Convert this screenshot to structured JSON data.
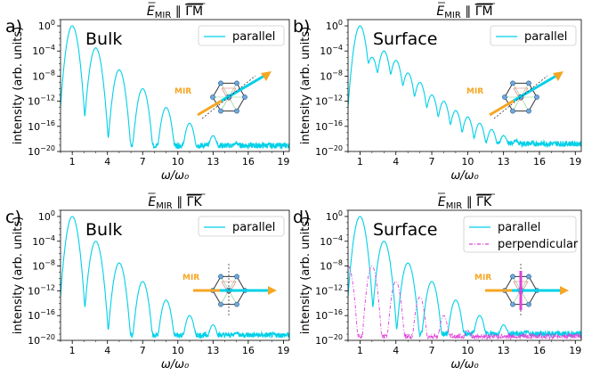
{
  "colors": {
    "parallel": "#00d0e8",
    "perpendicular": "#e040d8",
    "mir_arrow": "#f5a623",
    "axis": "#000000"
  },
  "chart_data": [
    {
      "type": "line",
      "label": "a)",
      "region": "Bulk",
      "title": "E_MIR ∥ ΓM",
      "title_parts": {
        "field": "E",
        "subscript": "MIR",
        "parallel": "∥",
        "direction": "ΓM"
      },
      "xlabel": "ω/ω₀",
      "ylabel": "intensity (arb. units)",
      "xlim": [
        0,
        19.5
      ],
      "ylim_log10": [
        -20,
        1
      ],
      "x_ticks": [
        "1",
        "4",
        "7",
        "10",
        "13",
        "16",
        "19"
      ],
      "y_ticks": [
        "10^0",
        "10^-4",
        "10^-8",
        "10^-12",
        "10^-16",
        "10^-20"
      ],
      "y_tick_parts": [
        [
          "10",
          "0"
        ],
        [
          "10",
          "−4"
        ],
        [
          "10",
          "−8"
        ],
        [
          "10",
          "−12"
        ],
        [
          "10",
          "−16"
        ],
        [
          "10",
          "−20"
        ]
      ],
      "mir_label": "MIR",
      "legend": [
        "parallel"
      ],
      "series": [
        {
          "name": "parallel",
          "style": "solid",
          "peaks": [
            {
              "x": 1,
              "log10": 0
            },
            {
              "x": 3,
              "log10": -3.5
            },
            {
              "x": 5,
              "log10": -7
            },
            {
              "x": 7,
              "log10": -10
            },
            {
              "x": 9,
              "log10": -13
            },
            {
              "x": 11,
              "log10": -15.5
            },
            {
              "x": 13,
              "log10": -17.5
            },
            {
              "x": 15,
              "log10": -19
            }
          ],
          "baseline_log10": -19.5
        }
      ]
    },
    {
      "type": "line",
      "label": "b)",
      "region": "Surface",
      "title": "E_MIR ∥ ΓM",
      "title_parts": {
        "field": "E",
        "subscript": "MIR",
        "parallel": "∥",
        "direction": "ΓM"
      },
      "xlabel": "ω/ω₀",
      "ylabel": "intensity (arb. units)",
      "xlim": [
        0,
        19.5
      ],
      "ylim_log10": [
        -20,
        1
      ],
      "x_ticks": [
        "1",
        "4",
        "7",
        "10",
        "13",
        "16",
        "19"
      ],
      "y_ticks": [
        "10^0",
        "10^-4",
        "10^-8",
        "10^-12",
        "10^-16",
        "10^-20"
      ],
      "y_tick_parts": [
        [
          "10",
          "0"
        ],
        [
          "10",
          "−4"
        ],
        [
          "10",
          "−8"
        ],
        [
          "10",
          "−12"
        ],
        [
          "10",
          "−16"
        ],
        [
          "10",
          "−20"
        ]
      ],
      "mir_label": "MIR",
      "legend": [
        "parallel"
      ],
      "series": [
        {
          "name": "parallel",
          "style": "solid",
          "peaks": [
            {
              "x": 1,
              "log10": 0
            },
            {
              "x": 2,
              "log10": -5
            },
            {
              "x": 3,
              "log10": -4
            },
            {
              "x": 4,
              "log10": -5.5
            },
            {
              "x": 5,
              "log10": -7.5
            },
            {
              "x": 6,
              "log10": -9
            },
            {
              "x": 7,
              "log10": -11
            },
            {
              "x": 8,
              "log10": -12
            },
            {
              "x": 9,
              "log10": -13.5
            },
            {
              "x": 10,
              "log10": -14.5
            },
            {
              "x": 11,
              "log10": -15.5
            },
            {
              "x": 12,
              "log10": -16.5
            },
            {
              "x": 13,
              "log10": -17.5
            },
            {
              "x": 14,
              "log10": -18.5
            }
          ],
          "baseline_log10": -19.2
        }
      ]
    },
    {
      "type": "line",
      "label": "c)",
      "region": "Bulk",
      "title": "E_MIR ∥ ΓK",
      "title_parts": {
        "field": "E",
        "subscript": "MIR",
        "parallel": "∥",
        "direction": "ΓK"
      },
      "xlabel": "ω/ω₀",
      "ylabel": "intensity (arb. units)",
      "xlim": [
        0,
        19.5
      ],
      "ylim_log10": [
        -20,
        1
      ],
      "x_ticks": [
        "1",
        "4",
        "7",
        "10",
        "13",
        "16",
        "19"
      ],
      "y_ticks": [
        "10^0",
        "10^-4",
        "10^-8",
        "10^-12",
        "10^-16",
        "10^-20"
      ],
      "y_tick_parts": [
        [
          "10",
          "0"
        ],
        [
          "10",
          "−4"
        ],
        [
          "10",
          "−8"
        ],
        [
          "10",
          "−12"
        ],
        [
          "10",
          "−16"
        ],
        [
          "10",
          "−20"
        ]
      ],
      "mir_label": "MIR",
      "legend": [
        "parallel"
      ],
      "series": [
        {
          "name": "parallel",
          "style": "solid",
          "peaks": [
            {
              "x": 1,
              "log10": 0
            },
            {
              "x": 3,
              "log10": -4
            },
            {
              "x": 5,
              "log10": -7.5
            },
            {
              "x": 7,
              "log10": -10.5
            },
            {
              "x": 9,
              "log10": -13.5
            },
            {
              "x": 11,
              "log10": -16
            },
            {
              "x": 13,
              "log10": -17.5
            },
            {
              "x": 15,
              "log10": -19
            }
          ],
          "baseline_log10": -19.6
        }
      ]
    },
    {
      "type": "line",
      "label": "d)",
      "region": "Surface",
      "title": "E_MIR ∥ ΓK",
      "title_parts": {
        "field": "E",
        "subscript": "MIR",
        "parallel": "∥",
        "direction": "ΓK"
      },
      "xlabel": "ω/ω₀",
      "ylabel": "intensity (arb. units)",
      "xlim": [
        0,
        19.5
      ],
      "ylim_log10": [
        -20,
        1
      ],
      "x_ticks": [
        "1",
        "4",
        "7",
        "10",
        "13",
        "16",
        "19"
      ],
      "y_ticks": [
        "10^0",
        "10^-4",
        "10^-8",
        "10^-12",
        "10^-16",
        "10^-20"
      ],
      "y_tick_parts": [
        [
          "10",
          "0"
        ],
        [
          "10",
          "−4"
        ],
        [
          "10",
          "−8"
        ],
        [
          "10",
          "−12"
        ],
        [
          "10",
          "−16"
        ],
        [
          "10",
          "−20"
        ]
      ],
      "mir_label": "MIR",
      "legend": [
        "parallel",
        "perpendicular"
      ],
      "series": [
        {
          "name": "parallel",
          "style": "solid",
          "peaks": [
            {
              "x": 1,
              "log10": 0
            },
            {
              "x": 3,
              "log10": -4
            },
            {
              "x": 5,
              "log10": -7.5
            },
            {
              "x": 7,
              "log10": -10.5
            },
            {
              "x": 9,
              "log10": -13.5
            },
            {
              "x": 11,
              "log10": -16
            },
            {
              "x": 13,
              "log10": -17.5
            },
            {
              "x": 15,
              "log10": -19
            }
          ],
          "baseline_log10": -19.4
        },
        {
          "name": "perpendicular",
          "style": "dashdot",
          "peaks": [
            {
              "x": 0,
              "log10": -8
            },
            {
              "x": 2,
              "log10": -8
            },
            {
              "x": 4,
              "log10": -10.5
            },
            {
              "x": 6,
              "log10": -13
            },
            {
              "x": 8,
              "log10": -16
            },
            {
              "x": 10,
              "log10": -18.5
            }
          ],
          "baseline_log10": -19.8
        }
      ]
    }
  ]
}
